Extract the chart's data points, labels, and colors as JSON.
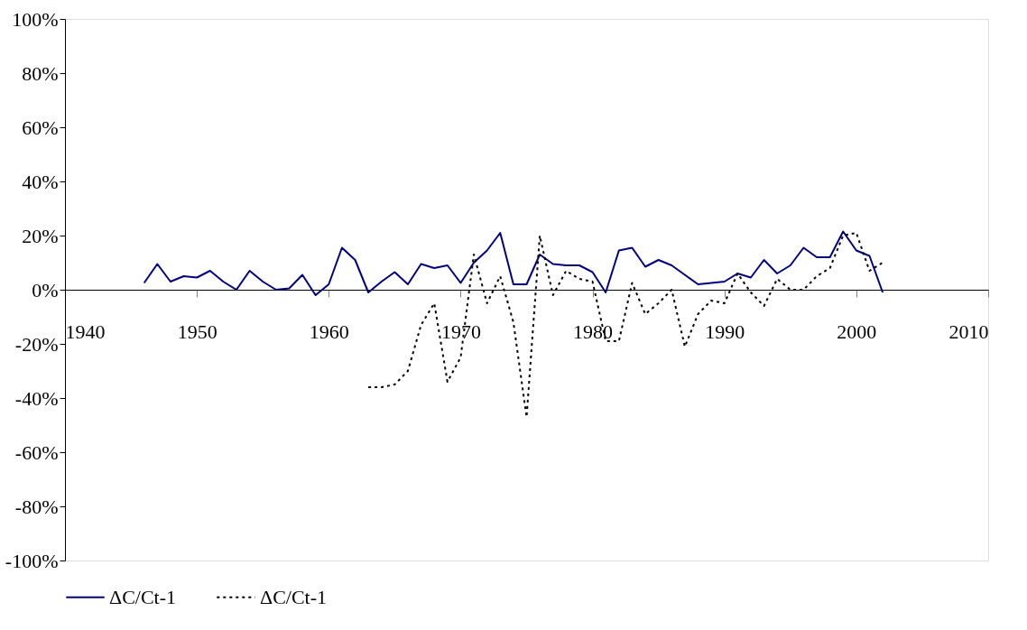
{
  "chart_data": {
    "type": "line",
    "x": [
      1946,
      1947,
      1948,
      1949,
      1950,
      1951,
      1952,
      1953,
      1954,
      1955,
      1956,
      1957,
      1958,
      1959,
      1960,
      1961,
      1962,
      1963,
      1964,
      1965,
      1966,
      1967,
      1968,
      1969,
      1970,
      1971,
      1972,
      1973,
      1974,
      1975,
      1976,
      1977,
      1978,
      1979,
      1980,
      1981,
      1982,
      1983,
      1984,
      1985,
      1986,
      1987,
      1988,
      1989,
      1990,
      1991,
      1992,
      1993,
      1994,
      1995,
      1996,
      1997,
      1998,
      1999,
      2000,
      2001,
      2002
    ],
    "series": [
      {
        "name": "ΔC/Ct-1",
        "color": "#000080",
        "line_style": "solid",
        "values": [
          2.5,
          9.5,
          3,
          5,
          4.5,
          7,
          3,
          0,
          7,
          3,
          0,
          0.5,
          5.5,
          -2,
          2,
          15.5,
          11,
          -1,
          3,
          6.5,
          2,
          9.5,
          8,
          9,
          2.5,
          10,
          14.5,
          21,
          2,
          2,
          13,
          9.5,
          9,
          9,
          6.5,
          -1,
          14.5,
          15.5,
          8.5,
          11,
          9,
          5.5,
          2,
          2.5,
          3,
          6,
          4.5,
          11,
          6,
          9,
          15.5,
          12,
          12,
          21.5,
          14.5,
          12.5,
          -1
        ]
      },
      {
        "name": "ΔC/Ct-1",
        "color": "#000000",
        "line_style": "dotted",
        "x": [
          1963,
          1964,
          1965,
          1966,
          1967,
          1968,
          1969,
          1970,
          1971,
          1972,
          1973,
          1974,
          1975,
          1976,
          1977,
          1978,
          1979,
          1980,
          1981,
          1982,
          1983,
          1984,
          1985,
          1986,
          1987,
          1988,
          1989,
          1990,
          1991,
          1992,
          1993,
          1994,
          1995,
          1996,
          1997,
          1998,
          1999,
          2000,
          2001,
          2002
        ],
        "values": [
          -36,
          -36,
          -35,
          -30,
          -13,
          -5,
          -34,
          -25,
          13,
          -5,
          5,
          -12,
          -47,
          20,
          -2,
          7,
          4,
          3,
          -19,
          -19,
          2.5,
          -9,
          -5,
          0,
          -21,
          -9,
          -4,
          -5,
          6,
          -1,
          -6,
          4,
          0,
          0,
          5,
          8,
          20,
          21,
          7,
          10
        ]
      }
    ],
    "xlim": [
      1940,
      2010
    ],
    "xticks": [
      1940,
      1950,
      1960,
      1970,
      1980,
      1990,
      2000,
      2010
    ],
    "ylim": [
      -100,
      100
    ],
    "yticks": [
      {
        "value": -100,
        "label": "-100%"
      },
      {
        "value": -80,
        "label": "-80%"
      },
      {
        "value": -60,
        "label": "-60%"
      },
      {
        "value": -40,
        "label": "-40%"
      },
      {
        "value": -20,
        "label": "-20%"
      },
      {
        "value": 0,
        "label": "0%"
      },
      {
        "value": 20,
        "label": "20%"
      },
      {
        "value": 40,
        "label": "40%"
      },
      {
        "value": 60,
        "label": "60%"
      },
      {
        "value": 80,
        "label": "80%"
      },
      {
        "value": 100,
        "label": "100%"
      }
    ],
    "grid": false,
    "legend": "bottom",
    "marker": "none"
  }
}
